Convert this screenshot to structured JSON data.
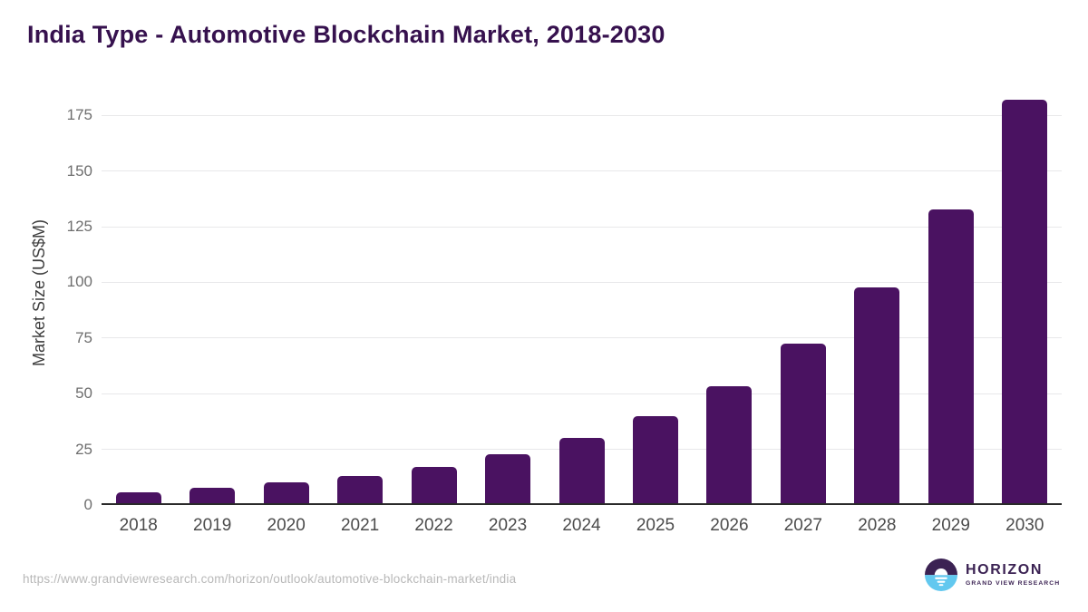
{
  "header": {
    "title": "India Type - Automotive Blockchain Market, 2018-2030"
  },
  "chart_data": {
    "type": "bar",
    "title": "India Type - Automotive Blockchain Market, 2018-2030",
    "xlabel": "",
    "ylabel": "Market Size (US$M)",
    "categories": [
      "2018",
      "2019",
      "2020",
      "2021",
      "2022",
      "2023",
      "2024",
      "2025",
      "2026",
      "2027",
      "2028",
      "2029",
      "2030"
    ],
    "values": [
      5.8,
      7.7,
      10.2,
      12.9,
      17.1,
      22.8,
      30.3,
      40.0,
      53.5,
      72.3,
      97.7,
      132.8,
      182.0
    ],
    "yticks": [
      0,
      25,
      50,
      75,
      100,
      125,
      150,
      175
    ],
    "ylim": [
      0,
      186.5
    ],
    "grid": "horizontal-only",
    "legend": "none",
    "bar_color": "#4a1261"
  },
  "footer": {
    "source_url": "https://www.grandviewresearch.com/horizon/outlook/automotive-blockchain-market/india",
    "logo": {
      "brand": "HORIZON",
      "sub_brand": "GRAND VIEW RESEARCH"
    }
  },
  "colors": {
    "title_text": "#36114e",
    "bar": "#4a1261",
    "axis_line": "#2a2a2a",
    "gridline": "#e8e8ea",
    "y_tick_text": "#6e6e6e",
    "x_tick_text": "#4c4c4c",
    "y_axis_title_text": "#3d3d3d",
    "source_url_text": "#b8b8b8",
    "logo_purple": "#3b2253",
    "logo_blue": "#62c8ef"
  }
}
